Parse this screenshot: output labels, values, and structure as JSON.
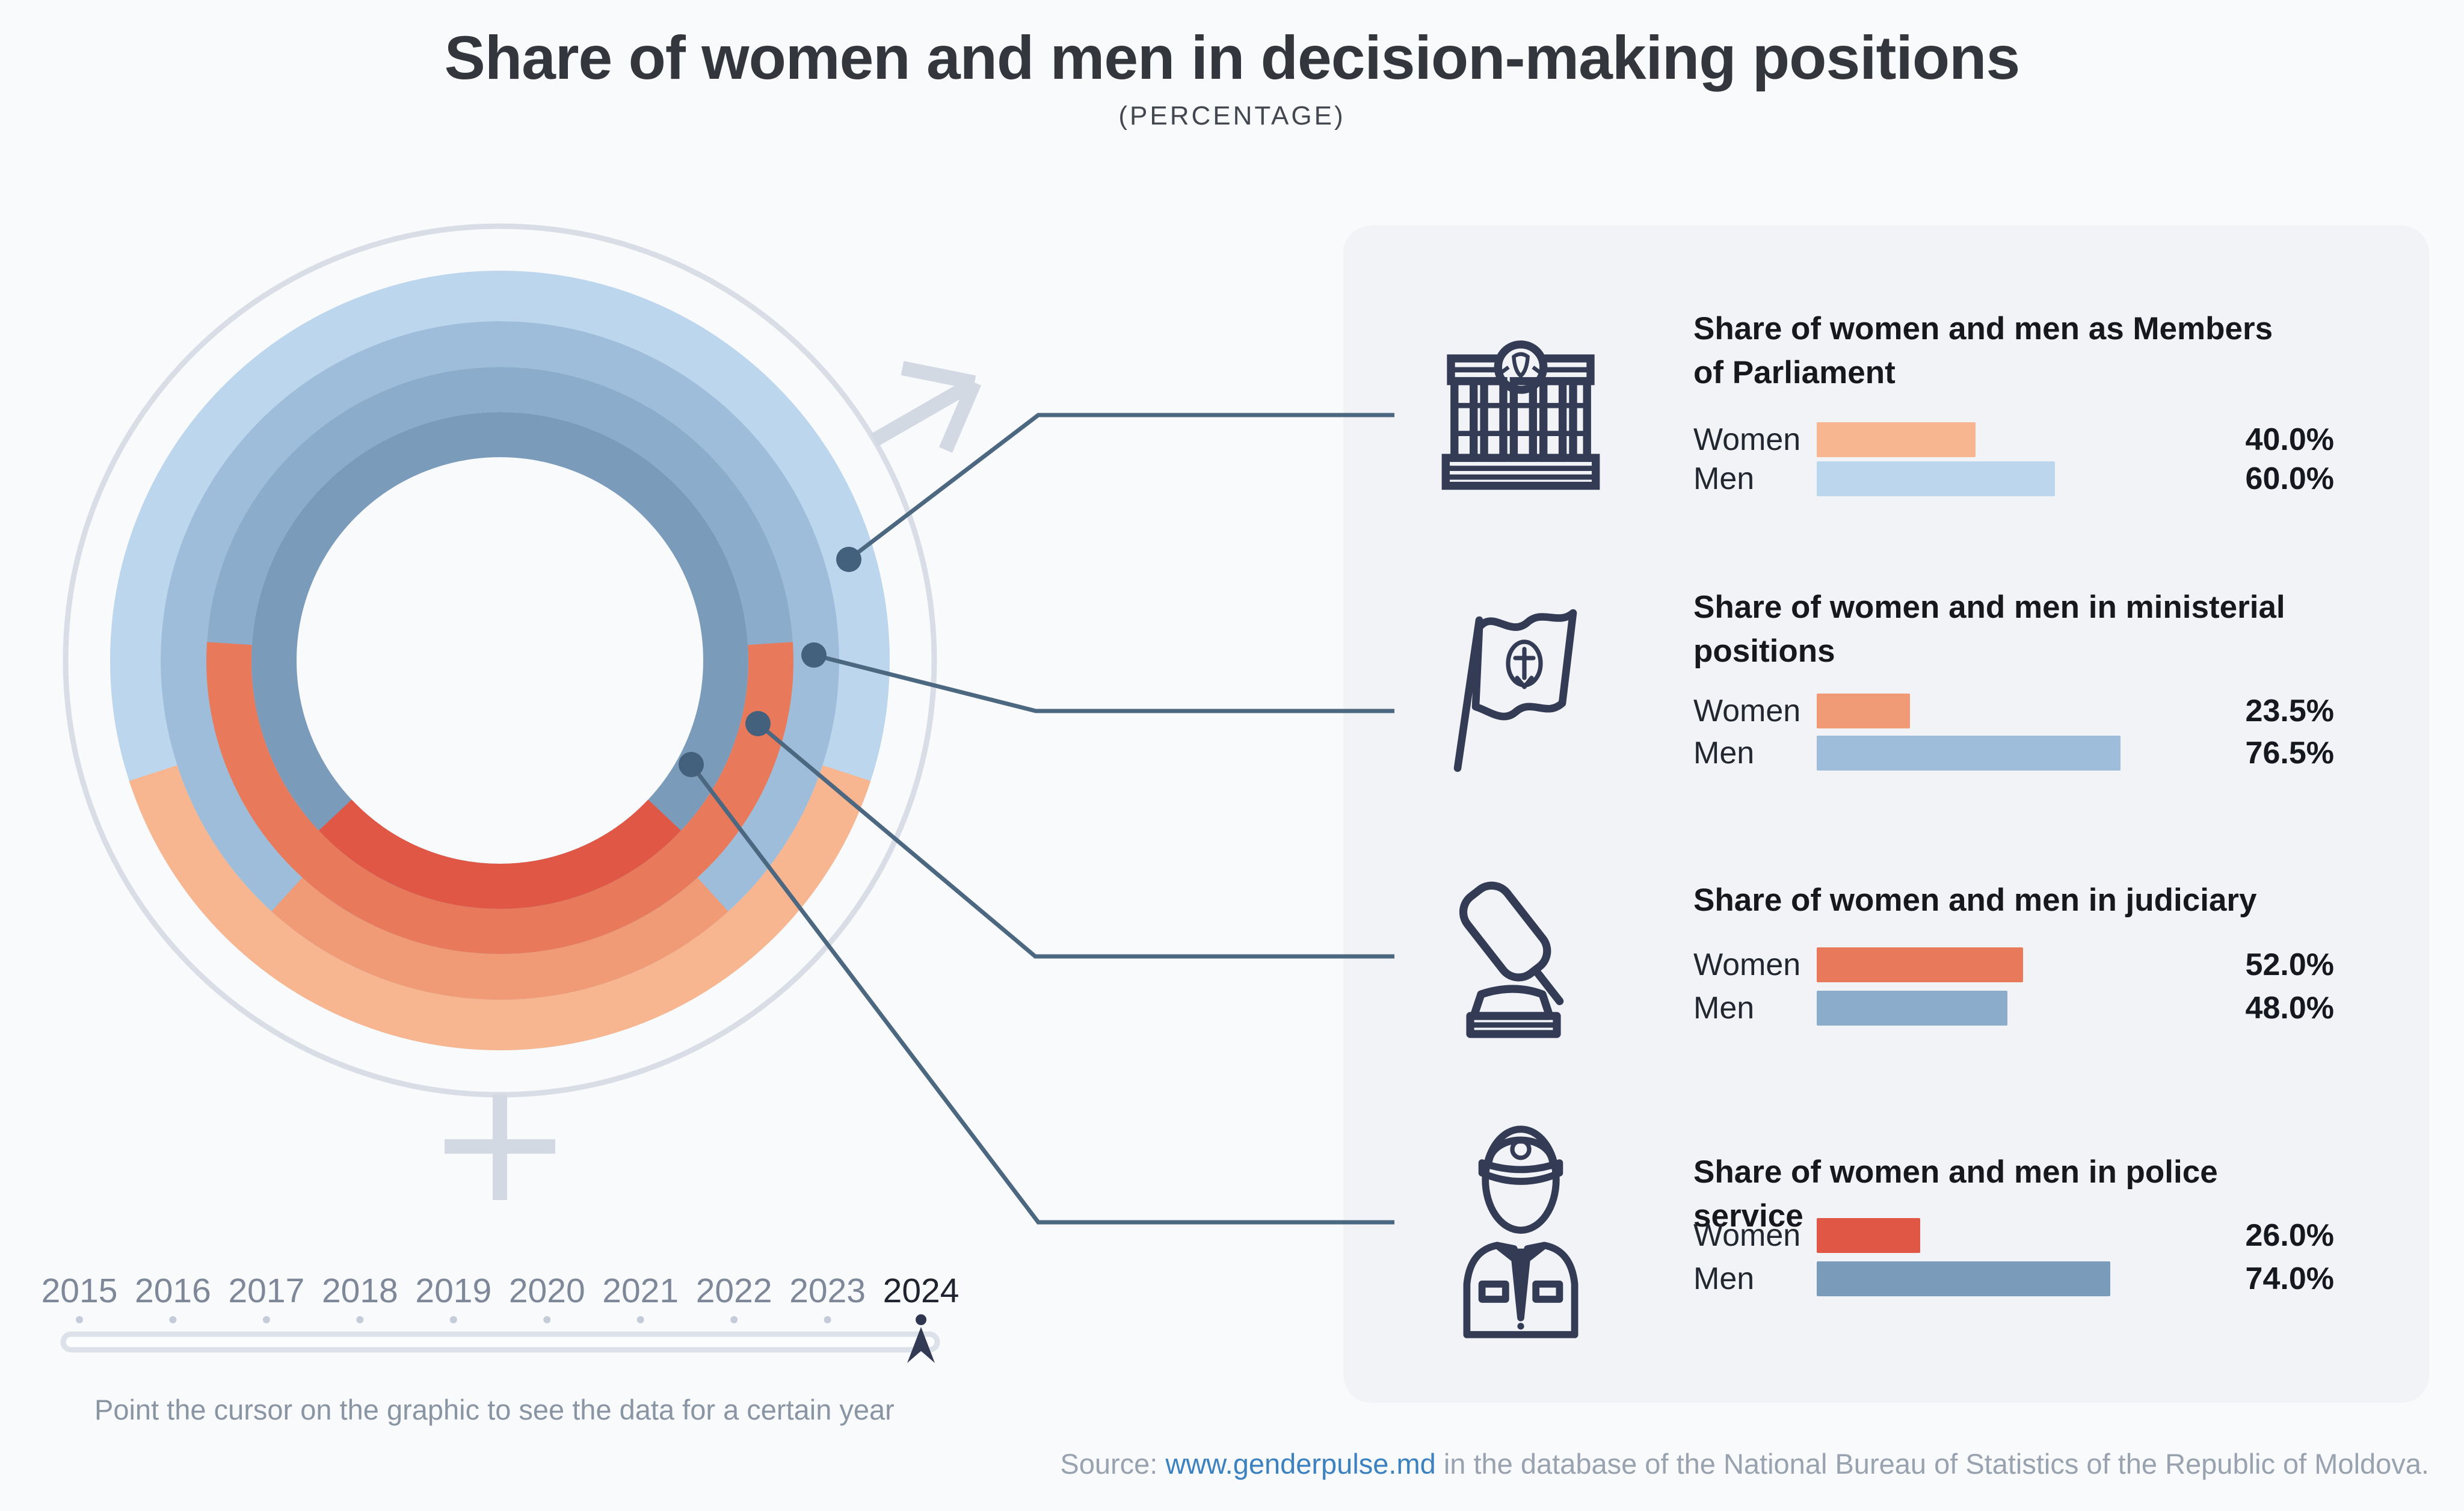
{
  "header": {
    "title": "Share of women and men in decision-making positions",
    "subtitle": "(PERCENTAGE)"
  },
  "chart_data": {
    "type": "donut",
    "unit": "percent",
    "selected_year": "2024",
    "note": "Four concentric rings, women share drawn as arc centered at bottom of each ring",
    "rings_outer_to_inner": [
      {
        "category": "Members of Parliament",
        "women": 40.0,
        "men": 60.0,
        "women_color": "#f7b590",
        "men_color": "#bcd6ed"
      },
      {
        "category": "Ministerial positions",
        "women": 23.5,
        "men": 76.5,
        "women_color": "#f09a76",
        "men_color": "#9dbdda"
      },
      {
        "category": "Judiciary",
        "women": 52.0,
        "men": 48.0,
        "women_color": "#e87a5b",
        "men_color": "#8badcb"
      },
      {
        "category": "Police service",
        "women": 26.0,
        "men": 74.0,
        "women_color": "#e15746",
        "men_color": "#7b9bba"
      }
    ]
  },
  "panel": {
    "sections": [
      {
        "icon": "parliament-icon",
        "title": "Share of women and men as Members of Parliament",
        "rows": [
          {
            "label": "Women",
            "value": "40.0%",
            "pct": 40.0,
            "color": "#f7b590"
          },
          {
            "label": "Men",
            "value": "60.0%",
            "pct": 60.0,
            "color": "#bcd6ed"
          }
        ]
      },
      {
        "icon": "flag-icon",
        "title": "Share of women and men in ministerial positions",
        "rows": [
          {
            "label": "Women",
            "value": "23.5%",
            "pct": 23.5,
            "color": "#f09a76"
          },
          {
            "label": "Men",
            "value": "76.5%",
            "pct": 76.5,
            "color": "#9dbdda"
          }
        ]
      },
      {
        "icon": "gavel-icon",
        "title": "Share of women and men in judiciary",
        "rows": [
          {
            "label": "Women",
            "value": "52.0%",
            "pct": 52.0,
            "color": "#e87a5b"
          },
          {
            "label": "Men",
            "value": "48.0%",
            "pct": 48.0,
            "color": "#8badcb"
          }
        ]
      },
      {
        "icon": "police-icon",
        "title": "Share of women and men in police service",
        "rows": [
          {
            "label": "Women",
            "value": "26.0%",
            "pct": 26.0,
            "color": "#e15746"
          },
          {
            "label": "Men",
            "value": "74.0%",
            "pct": 74.0,
            "color": "#7b9bba"
          }
        ]
      }
    ]
  },
  "timeline": {
    "years": [
      "2015",
      "2016",
      "2017",
      "2018",
      "2019",
      "2020",
      "2021",
      "2022",
      "2023",
      "2024"
    ],
    "selected": "2024",
    "hint": "Point the cursor on the graphic to see the data for a certain year"
  },
  "footer": {
    "source_prefix": "Source: ",
    "source_link": "www.genderpulse.md",
    "source_suffix": " in the database of the National Bureau of Statistics of the Republic of Moldova."
  },
  "colors": {
    "background": "#f9fafc",
    "panel": "#f1f3f7",
    "title_text": "#33373d",
    "muted_text": "#8a95a4",
    "year_text": "#7e8898",
    "year_selected_text": "#20242e",
    "connector": "#4c6780",
    "connector_dot": "#43607d",
    "gender_symbol": "#d3d9e3",
    "icon_stroke": "#333b55",
    "track_border": "#dde2ea",
    "cursor_fill": "#323a54",
    "link": "#3c82c0"
  }
}
